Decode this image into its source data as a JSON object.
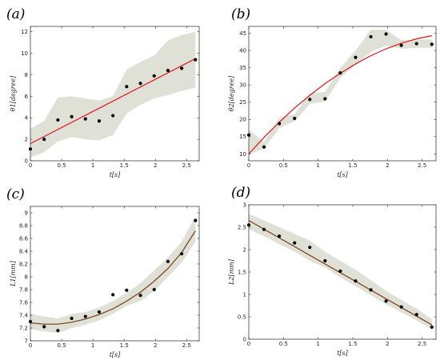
{
  "chart_data": [
    {
      "type": "scatter",
      "panel_label": "(a)",
      "xlabel": "t[s]",
      "ylabel": "θ1[degree]",
      "xlim": [
        0,
        2.7
      ],
      "ylim": [
        0,
        12.5
      ],
      "xticks": [
        "0",
        "0.5",
        "1",
        "1.5",
        "2",
        "2.5"
      ],
      "xtick_values": [
        0,
        0.5,
        1,
        1.5,
        2,
        2.5
      ],
      "yticks": [
        "0",
        "2",
        "4",
        "6",
        "8",
        "10",
        "12"
      ],
      "ytick_values": [
        0,
        2,
        4,
        6,
        8,
        10,
        12
      ],
      "band_color": "#dfe1d6",
      "fit_color": "#e0161b",
      "points": {
        "x": [
          0,
          0.22,
          0.44,
          0.66,
          0.88,
          1.1,
          1.32,
          1.54,
          1.76,
          1.98,
          2.2,
          2.42,
          2.64
        ],
        "y": [
          1.1,
          2.0,
          3.8,
          4.1,
          3.9,
          3.7,
          4.2,
          6.9,
          7.2,
          7.9,
          8.4,
          8.6,
          9.4
        ]
      },
      "fit": {
        "x": [
          0,
          2.64
        ],
        "y": [
          1.6,
          9.5
        ]
      },
      "band": {
        "x": [
          0,
          0.22,
          0.44,
          0.66,
          0.88,
          1.1,
          1.32,
          1.54,
          1.76,
          1.98,
          2.2,
          2.42,
          2.64
        ],
        "lower": [
          0.3,
          0.8,
          1.8,
          2.2,
          2.0,
          1.9,
          2.4,
          4.4,
          5.2,
          5.8,
          6.1,
          6.5,
          6.8
        ],
        "upper": [
          3.0,
          3.7,
          5.9,
          6.0,
          5.8,
          5.6,
          6.0,
          8.5,
          9.2,
          9.8,
          11.2,
          11.7,
          12.0
        ]
      }
    },
    {
      "type": "scatter",
      "panel_label": "(b)",
      "xlabel": "t[s]",
      "ylabel": "θ2[degree]",
      "xlim": [
        0,
        2.7
      ],
      "ylim": [
        8,
        47
      ],
      "xticks": [
        "0",
        "0.5",
        "1",
        "1.5",
        "2",
        "2.5"
      ],
      "xtick_values": [
        0,
        0.5,
        1,
        1.5,
        2,
        2.5
      ],
      "yticks": [
        "10",
        "15",
        "20",
        "25",
        "30",
        "35",
        "40",
        "45"
      ],
      "ytick_values": [
        10,
        15,
        20,
        25,
        30,
        35,
        40,
        45
      ],
      "band_color": "#dfe1d6",
      "fit_color": "#e0161b",
      "points": {
        "x": [
          0,
          0.22,
          0.44,
          0.66,
          0.88,
          1.1,
          1.32,
          1.54,
          1.76,
          1.98,
          2.2,
          2.42,
          2.64
        ],
        "y": [
          15.5,
          12.0,
          18.8,
          20.3,
          25.8,
          26.0,
          33.5,
          38.0,
          44.0,
          44.8,
          41.5,
          42.0,
          41.8
        ]
      },
      "fit": {
        "x": [
          0,
          0.22,
          0.44,
          0.66,
          0.88,
          1.1,
          1.32,
          1.54,
          1.76,
          1.98,
          2.2,
          2.42,
          2.64
        ],
        "y": [
          10.0,
          14.8,
          19.2,
          23.3,
          27.0,
          30.4,
          33.4,
          36.1,
          38.5,
          40.5,
          42.1,
          43.4,
          44.3
        ]
      },
      "band": {
        "x": [
          0,
          0.22,
          0.44,
          0.66,
          0.88,
          1.1,
          1.32,
          1.54,
          1.76,
          1.98,
          2.2,
          2.42,
          2.64
        ],
        "lower": [
          10.0,
          11.5,
          17.5,
          19.5,
          24.5,
          25.2,
          32.0,
          36.0,
          39.5,
          41.5,
          40.5,
          40.8,
          40.8
        ],
        "upper": [
          17.0,
          13.5,
          20.5,
          21.5,
          27.5,
          28.0,
          35.0,
          40.0,
          46.0,
          46.0,
          43.0,
          43.2,
          43.2
        ]
      }
    },
    {
      "type": "scatter",
      "panel_label": "(c)",
      "xlabel": "t[s]",
      "ylabel": "L1[mm]",
      "xlim": [
        0,
        2.7
      ],
      "ylim": [
        7.0,
        9.1
      ],
      "xticks": [
        "0",
        "0.5",
        "1",
        "1.5",
        "2",
        "2.5"
      ],
      "xtick_values": [
        0,
        0.5,
        1,
        1.5,
        2,
        2.5
      ],
      "yticks": [
        "7",
        "7.2",
        "7.4",
        "7.6",
        "7.8",
        "8",
        "8.2",
        "8.4",
        "8.6",
        "8.8",
        "9"
      ],
      "ytick_values": [
        7.0,
        7.2,
        7.4,
        7.6,
        7.8,
        8.0,
        8.2,
        8.4,
        8.6,
        8.8,
        9.0
      ],
      "band_color": "#dfe1d6",
      "fit_color": "#7a3b16",
      "points": {
        "x": [
          0,
          0.22,
          0.44,
          0.66,
          0.88,
          1.1,
          1.32,
          1.54,
          1.76,
          1.98,
          2.2,
          2.42,
          2.64
        ],
        "y": [
          7.3,
          7.22,
          7.16,
          7.35,
          7.38,
          7.45,
          7.72,
          7.79,
          7.71,
          7.8,
          8.24,
          8.36,
          8.88
        ]
      },
      "fit": {
        "x": [
          0,
          0.22,
          0.44,
          0.66,
          0.88,
          1.1,
          1.32,
          1.54,
          1.76,
          1.98,
          2.2,
          2.42,
          2.64
        ],
        "y": [
          7.28,
          7.26,
          7.26,
          7.29,
          7.34,
          7.41,
          7.5,
          7.62,
          7.76,
          7.93,
          8.13,
          8.38,
          8.72
        ]
      },
      "band": {
        "x": [
          0,
          0.22,
          0.44,
          0.66,
          0.88,
          1.1,
          1.32,
          1.54,
          1.76,
          1.98,
          2.2,
          2.42,
          2.64
        ],
        "lower": [
          7.18,
          7.15,
          7.12,
          7.2,
          7.25,
          7.32,
          7.42,
          7.55,
          7.62,
          7.78,
          8.0,
          8.22,
          8.55
        ],
        "upper": [
          7.42,
          7.38,
          7.35,
          7.42,
          7.45,
          7.52,
          7.62,
          7.75,
          7.9,
          8.1,
          8.3,
          8.55,
          8.95
        ]
      }
    },
    {
      "type": "scatter",
      "panel_label": "(d)",
      "xlabel": "t[s]",
      "ylabel": "L2[mm]",
      "xlim": [
        0,
        2.7
      ],
      "ylim": [
        0,
        3.0
      ],
      "xticks": [
        "0",
        "0.5",
        "1",
        "1.5",
        "2",
        "2.5"
      ],
      "xtick_values": [
        0,
        0.5,
        1,
        1.5,
        2,
        2.5
      ],
      "yticks": [
        "0",
        "0.5",
        "1",
        "1.5",
        "2",
        "2.5",
        "3"
      ],
      "ytick_values": [
        0,
        0.5,
        1.0,
        1.5,
        2.0,
        2.5,
        3.0
      ],
      "band_color": "#dfe1d6",
      "fit_color": "#7a3b16",
      "points": {
        "x": [
          0,
          0.22,
          0.44,
          0.66,
          0.88,
          1.1,
          1.32,
          1.54,
          1.76,
          1.98,
          2.2,
          2.42,
          2.64
        ],
        "y": [
          2.55,
          2.45,
          2.3,
          2.15,
          2.05,
          1.75,
          1.52,
          1.3,
          1.1,
          0.85,
          0.72,
          0.55,
          0.27
        ]
      },
      "fit": {
        "x": [
          0,
          2.64
        ],
        "y": [
          2.65,
          0.32
        ]
      },
      "band": {
        "x": [
          0,
          0.22,
          0.44,
          0.66,
          0.88,
          1.1,
          1.32,
          1.54,
          1.76,
          1.98,
          2.2,
          2.42,
          2.64
        ],
        "lower": [
          2.45,
          2.3,
          2.12,
          1.95,
          1.75,
          1.6,
          1.38,
          1.18,
          0.98,
          0.78,
          0.6,
          0.42,
          0.22
        ],
        "upper": [
          2.8,
          2.65,
          2.5,
          2.35,
          2.2,
          1.95,
          1.75,
          1.55,
          1.32,
          1.08,
          0.88,
          0.68,
          0.45
        ]
      }
    }
  ]
}
